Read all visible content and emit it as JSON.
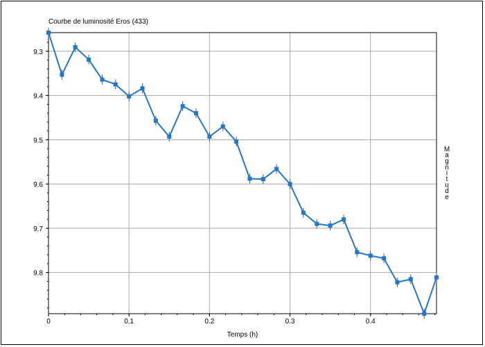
{
  "chart_data": {
    "type": "line",
    "title": "Courbe de luminosité Eros (433)",
    "xlabel": "Temps (h)",
    "ylabel": "Magnitude",
    "x_ticks": [
      "0",
      "0.1",
      "0.2",
      "0.3",
      "0.4"
    ],
    "x_tick_values": [
      0,
      0.1,
      0.2,
      0.3,
      0.4
    ],
    "y_ticks": [
      "9.3",
      "9.4",
      "9.5",
      "9.6",
      "9.7",
      "9.8"
    ],
    "y_tick_values": [
      9.3,
      9.4,
      9.5,
      9.6,
      9.7,
      9.8
    ],
    "xlim": [
      0,
      0.482
    ],
    "ylim": [
      9.258,
      9.893
    ],
    "y_inverted": true,
    "grid": true,
    "series_color": "#1f77d4",
    "series": [
      {
        "x": [
          0,
          0.0167,
          0.0333,
          0.05,
          0.0667,
          0.0833,
          0.1,
          0.1167,
          0.1333,
          0.15,
          0.1667,
          0.1833,
          0.2,
          0.2167,
          0.2333,
          0.25,
          0.2667,
          0.2833,
          0.3,
          0.3167,
          0.3333,
          0.35,
          0.3667,
          0.3833,
          0.4,
          0.4167,
          0.4333,
          0.45,
          0.4667,
          0.482
        ],
        "y": [
          9.258,
          9.353,
          9.291,
          9.319,
          9.364,
          9.375,
          9.402,
          9.384,
          9.457,
          9.493,
          9.424,
          9.44,
          9.493,
          9.47,
          9.504,
          9.588,
          9.589,
          9.566,
          9.6,
          9.665,
          9.69,
          9.694,
          9.68,
          9.754,
          9.762,
          9.768,
          9.822,
          9.815,
          9.893,
          9.811
        ]
      }
    ]
  }
}
